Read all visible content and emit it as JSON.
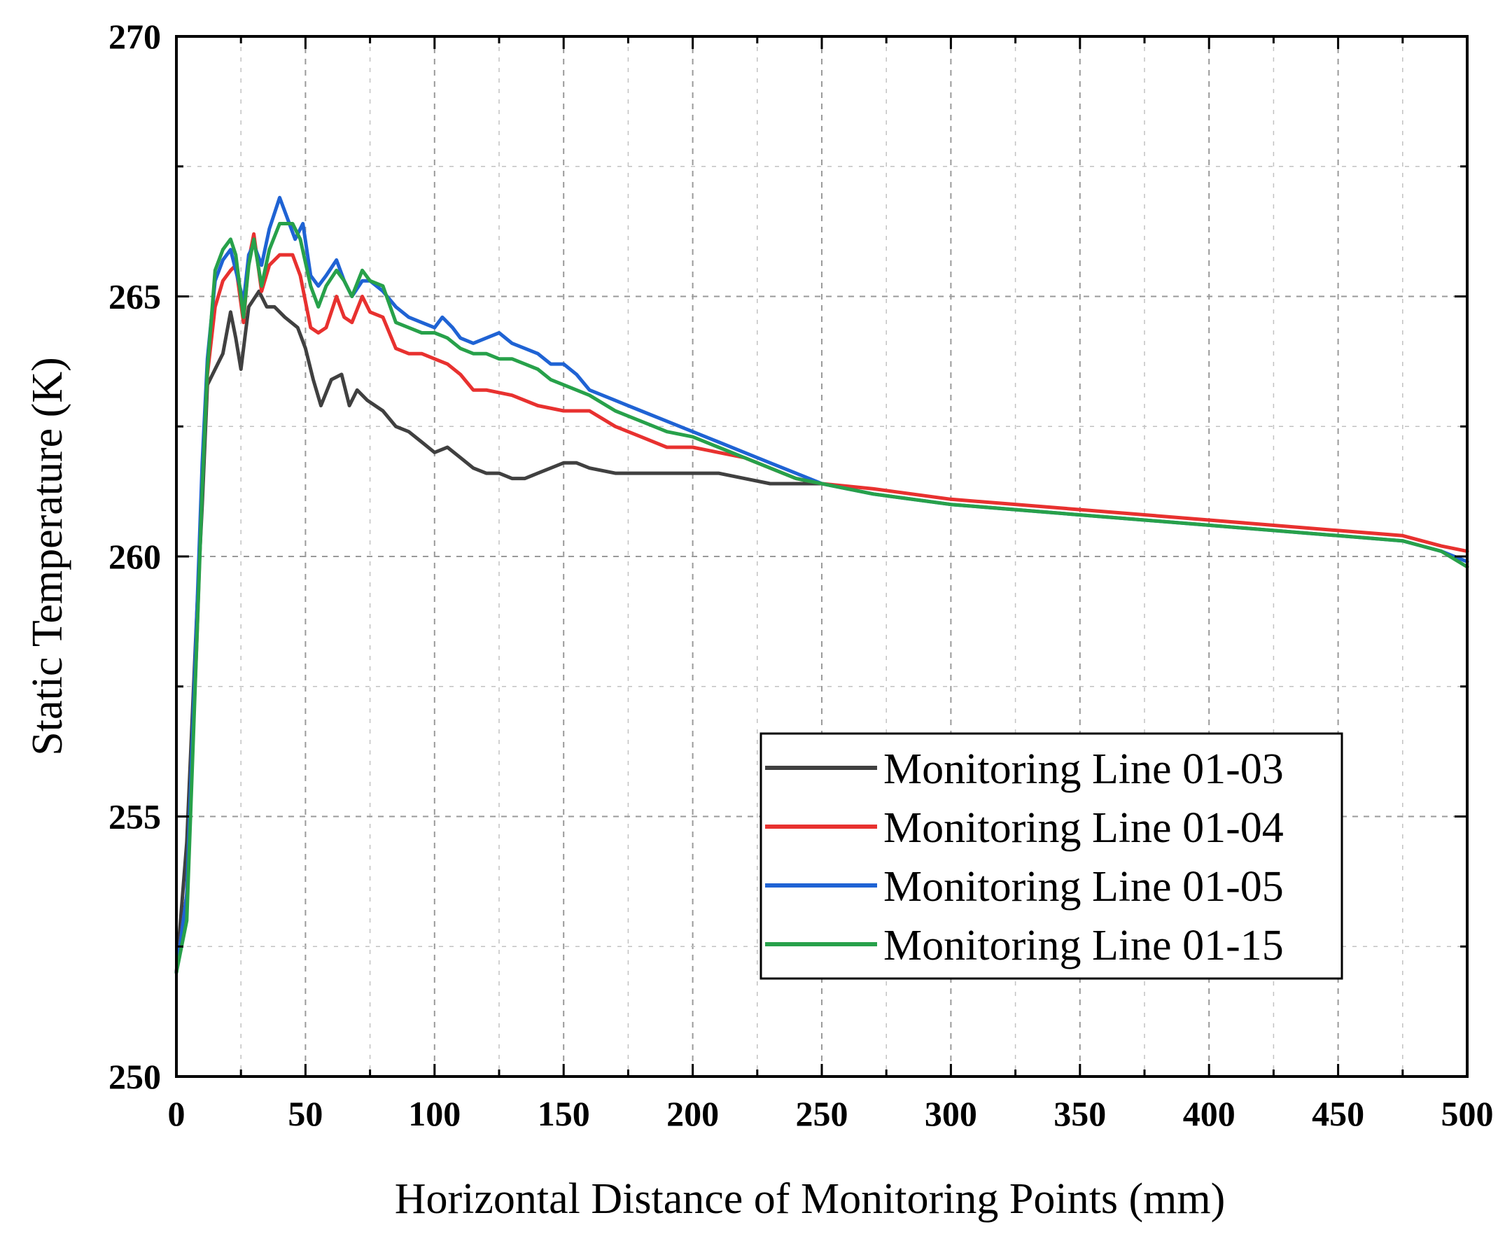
{
  "chart_data": {
    "type": "line",
    "title": "",
    "xlabel": "Horizontal Distance of Monitoring Points (mm)",
    "ylabel": "Static Temperature (K)",
    "xlim": [
      0,
      500
    ],
    "ylim": [
      250,
      270
    ],
    "xticks": [
      "0",
      "50",
      "100",
      "150",
      "200",
      "250",
      "300",
      "350",
      "400",
      "450",
      "500"
    ],
    "yticks": [
      "250",
      "255",
      "260",
      "265",
      "270"
    ],
    "grid": true,
    "legend_position": "lower-right",
    "series": [
      {
        "name": "Monitoring Line 01-03",
        "color": "#404040",
        "x": [
          0,
          4,
          8,
          10,
          12,
          15,
          18,
          21,
          23,
          25,
          28,
          32,
          35,
          38,
          42,
          47,
          50,
          53,
          56,
          60,
          64,
          67,
          70,
          74,
          80,
          85,
          90,
          95,
          100,
          105,
          110,
          115,
          120,
          125,
          130,
          135,
          140,
          145,
          150,
          155,
          160,
          170,
          180,
          190,
          200,
          210,
          220,
          230,
          240,
          250
        ],
        "y": [
          252.0,
          254.5,
          259.0,
          261.0,
          263.3,
          263.6,
          263.9,
          264.7,
          264.2,
          263.6,
          264.8,
          265.1,
          264.8,
          264.8,
          264.6,
          264.4,
          264.0,
          263.4,
          262.9,
          263.4,
          263.5,
          262.9,
          263.2,
          263.0,
          262.8,
          262.5,
          262.4,
          262.2,
          262.0,
          262.1,
          261.9,
          261.7,
          261.6,
          261.6,
          261.5,
          261.5,
          261.6,
          261.7,
          261.8,
          261.8,
          261.7,
          261.6,
          261.6,
          261.6,
          261.6,
          261.6,
          261.5,
          261.4,
          261.4,
          261.4
        ]
      },
      {
        "name": "Monitoring Line 01-04",
        "color": "#e8312f",
        "x": [
          0,
          4,
          8,
          10,
          12,
          15,
          18,
          21,
          23,
          26,
          28,
          30,
          33,
          36,
          40,
          45,
          48,
          52,
          55,
          58,
          62,
          65,
          68,
          72,
          75,
          80,
          85,
          90,
          95,
          100,
          105,
          110,
          115,
          120,
          130,
          140,
          150,
          160,
          170,
          180,
          190,
          200,
          210,
          220,
          230,
          240,
          250,
          270,
          300,
          350,
          400,
          450,
          475,
          490,
          500
        ],
        "y": [
          252.0,
          253.5,
          258.5,
          261.5,
          263.5,
          264.8,
          265.3,
          265.5,
          265.6,
          264.5,
          265.7,
          266.2,
          265.1,
          265.6,
          265.8,
          265.8,
          265.4,
          264.4,
          264.3,
          264.4,
          265.0,
          264.6,
          264.5,
          265.0,
          264.7,
          264.6,
          264.0,
          263.9,
          263.9,
          263.8,
          263.7,
          263.5,
          263.2,
          263.2,
          263.1,
          262.9,
          262.8,
          262.8,
          262.5,
          262.3,
          262.1,
          262.1,
          262.0,
          261.9,
          261.7,
          261.5,
          261.4,
          261.3,
          261.1,
          260.9,
          260.7,
          260.5,
          260.4,
          260.2,
          260.1
        ]
      },
      {
        "name": "Monitoring Line 01-05",
        "color": "#1f63d4",
        "x": [
          0,
          4,
          8,
          10,
          12,
          15,
          18,
          21,
          23,
          26,
          28,
          30,
          33,
          36,
          40,
          43,
          46,
          49,
          52,
          55,
          58,
          62,
          65,
          68,
          72,
          75,
          80,
          85,
          90,
          95,
          100,
          103,
          107,
          110,
          115,
          120,
          125,
          130,
          135,
          140,
          145,
          150,
          155,
          160,
          170,
          180,
          190,
          200,
          210,
          220,
          230,
          240,
          250,
          270,
          300,
          350,
          400,
          450,
          475,
          490,
          500
        ],
        "y": [
          252.0,
          253.5,
          259.0,
          261.8,
          263.8,
          265.3,
          265.7,
          265.9,
          265.5,
          264.9,
          265.8,
          266.0,
          265.6,
          266.3,
          266.9,
          266.5,
          266.1,
          266.4,
          265.4,
          265.2,
          265.4,
          265.7,
          265.3,
          265.0,
          265.3,
          265.3,
          265.1,
          264.8,
          264.6,
          264.5,
          264.4,
          264.6,
          264.4,
          264.2,
          264.1,
          264.2,
          264.3,
          264.1,
          264.0,
          263.9,
          263.7,
          263.7,
          263.5,
          263.2,
          263.0,
          262.8,
          262.6,
          262.4,
          262.2,
          262.0,
          261.8,
          261.6,
          261.4,
          261.2,
          261.0,
          260.8,
          260.6,
          260.4,
          260.3,
          260.1,
          259.9
        ]
      },
      {
        "name": "Monitoring Line 01-15",
        "color": "#27a14a",
        "x": [
          0,
          4,
          8,
          10,
          12,
          15,
          18,
          21,
          23,
          26,
          28,
          30,
          33,
          36,
          40,
          45,
          48,
          52,
          55,
          58,
          62,
          65,
          68,
          72,
          75,
          80,
          85,
          90,
          95,
          100,
          105,
          110,
          115,
          120,
          125,
          130,
          135,
          140,
          145,
          150,
          160,
          170,
          180,
          190,
          200,
          210,
          220,
          230,
          240,
          250,
          270,
          300,
          350,
          400,
          450,
          475,
          490,
          500
        ],
        "y": [
          252.0,
          253.0,
          258.5,
          261.3,
          263.6,
          265.5,
          265.9,
          266.1,
          265.8,
          264.6,
          265.6,
          266.1,
          265.2,
          265.9,
          266.4,
          266.4,
          266.1,
          265.2,
          264.8,
          265.2,
          265.5,
          265.3,
          265.0,
          265.5,
          265.3,
          265.2,
          264.5,
          264.4,
          264.3,
          264.3,
          264.2,
          264.0,
          263.9,
          263.9,
          263.8,
          263.8,
          263.7,
          263.6,
          263.4,
          263.3,
          263.1,
          262.8,
          262.6,
          262.4,
          262.3,
          262.1,
          261.9,
          261.7,
          261.5,
          261.4,
          261.2,
          261.0,
          260.8,
          260.6,
          260.4,
          260.3,
          260.1,
          259.8
        ]
      }
    ]
  }
}
